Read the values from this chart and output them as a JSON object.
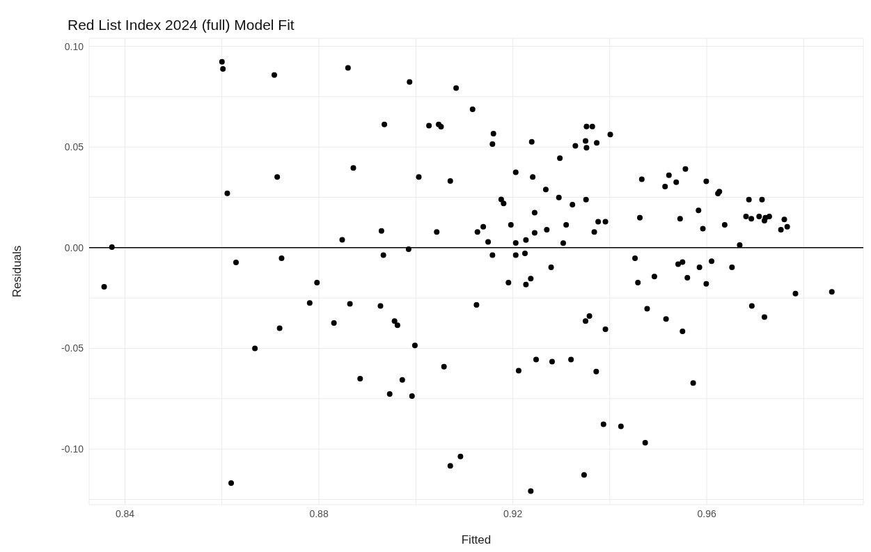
{
  "chart_data": {
    "type": "scatter",
    "title": "Red List Index 2024 (full) Model Fit",
    "xlabel": "Fitted",
    "ylabel": "Residuals",
    "grid": true,
    "marker": "circle",
    "xlim": [
      0.8326,
      0.9923
    ],
    "ylim": [
      -0.1276,
      0.104
    ],
    "xticks": [
      0.84,
      {
        "value": 0.86,
        "label": null
      },
      0.88,
      {
        "value": 0.9,
        "label": null
      },
      0.92,
      {
        "value": 0.94,
        "label": null
      },
      0.96,
      {
        "value": 0.98,
        "label": null
      }
    ],
    "yticks": [
      {
        "value": -0.125,
        "label": null
      },
      {
        "value": -0.1,
        "label": "-0.10"
      },
      {
        "value": -0.075,
        "label": null
      },
      {
        "value": -0.05,
        "label": "-0.05"
      },
      {
        "value": -0.025,
        "label": null
      },
      {
        "value": 0,
        "label": "0.00"
      },
      {
        "value": 0.025,
        "label": null
      },
      {
        "value": 0.05,
        "label": "0.05"
      },
      {
        "value": 0.075,
        "label": null
      },
      {
        "value": 0.1,
        "label": "0.10"
      }
    ],
    "ref_lines": [
      {
        "axis": "y",
        "value": 0,
        "color": "#000000"
      }
    ],
    "series": [
      {
        "color": "#000000",
        "x": [
          0.86,
          0.8602,
          0.8708,
          0.886,
          0.8871,
          0.8714,
          0.8611,
          0.8373,
          0.8848,
          0.8629,
          0.8723,
          0.8987,
          0.9083,
          0.9117,
          0.8935,
          0.9027,
          0.9047,
          0.9052,
          0.916,
          0.9158,
          0.9239,
          0.9352,
          0.9364,
          0.9401,
          0.935,
          0.9373,
          0.9329,
          0.9352,
          0.9297,
          0.9006,
          0.9071,
          0.9206,
          0.9241,
          0.9268,
          0.9295,
          0.9323,
          0.9351,
          0.9176,
          0.9181,
          0.9245,
          0.9196,
          0.9139,
          0.9127,
          0.9043,
          0.8929,
          0.931,
          0.927,
          0.9245,
          0.9376,
          0.9391,
          0.9368,
          0.9149,
          0.9206,
          0.9227,
          0.9304,
          0.8985,
          0.8933,
          0.9158,
          0.9206,
          0.9225,
          0.9279,
          0.9556,
          0.9522,
          0.9466,
          0.9537,
          0.9514,
          0.9599,
          0.9623,
          0.9626,
          0.9687,
          0.9714,
          0.9583,
          0.9462,
          0.9545,
          0.9681,
          0.9692,
          0.9708,
          0.9719,
          0.9721,
          0.9729,
          0.976,
          0.9766,
          0.9753,
          0.9637,
          0.9592,
          0.9668,
          0.9452,
          0.9541,
          0.955,
          0.9585,
          0.961,
          0.9652,
          0.8357,
          0.8796,
          0.8781,
          0.8864,
          0.8831,
          0.8719,
          0.8668,
          0.8619,
          0.9191,
          0.9227,
          0.9237,
          0.8927,
          0.8956,
          0.8962,
          0.8998,
          0.9125,
          0.935,
          0.9358,
          0.9391,
          0.9058,
          0.8885,
          0.8972,
          0.8946,
          0.8992,
          0.9212,
          0.9248,
          0.9281,
          0.932,
          0.9372,
          0.9387,
          0.9092,
          0.9071,
          0.9347,
          0.9237,
          0.9492,
          0.9458,
          0.956,
          0.9599,
          0.9783,
          0.9858,
          0.9477,
          0.9516,
          0.955,
          0.9693,
          0.9719,
          0.9572,
          0.9423,
          0.9473
        ],
        "values": [
          0.0923,
          0.0888,
          0.0858,
          0.0893,
          0.0396,
          0.0351,
          0.027,
          0.0003,
          0.0039,
          -0.0073,
          -0.0052,
          0.0823,
          0.0793,
          0.0687,
          0.0612,
          0.0606,
          0.0612,
          0.0601,
          0.0566,
          0.0515,
          0.0526,
          0.0602,
          0.0602,
          0.0562,
          0.053,
          0.0521,
          0.0506,
          0.0496,
          0.0445,
          0.0351,
          0.0331,
          0.0375,
          0.0351,
          0.0289,
          0.0249,
          0.0214,
          0.0239,
          0.024,
          0.022,
          0.0174,
          0.0114,
          0.0104,
          0.0078,
          0.0078,
          0.0083,
          0.0114,
          0.0089,
          0.0074,
          0.0129,
          0.0129,
          0.0078,
          0.0029,
          0.0024,
          0.0038,
          0.0023,
          -0.0007,
          -0.0037,
          -0.0037,
          -0.0037,
          -0.0028,
          -0.0097,
          0.0391,
          0.036,
          0.034,
          0.0325,
          0.0304,
          0.033,
          0.0269,
          0.0279,
          0.0239,
          0.0239,
          0.0185,
          0.0149,
          0.0144,
          0.0155,
          0.0144,
          0.0155,
          0.0134,
          0.0149,
          0.0155,
          0.014,
          0.0104,
          0.0089,
          0.0114,
          0.0095,
          0.0013,
          -0.0052,
          -0.0082,
          -0.0071,
          -0.0097,
          -0.0067,
          -0.0097,
          -0.0194,
          -0.0173,
          -0.0274,
          -0.0279,
          -0.0374,
          -0.04,
          -0.05,
          -0.1169,
          -0.0173,
          -0.0183,
          -0.0153,
          -0.0289,
          -0.0364,
          -0.0385,
          -0.0485,
          -0.0284,
          -0.0364,
          -0.0339,
          -0.0405,
          -0.0591,
          -0.065,
          -0.0656,
          -0.0726,
          -0.0737,
          -0.0611,
          -0.0555,
          -0.0566,
          -0.0555,
          -0.0615,
          -0.0877,
          -0.1037,
          -0.1083,
          -0.1128,
          -0.1209,
          -0.0143,
          -0.0173,
          -0.0149,
          -0.0179,
          -0.0228,
          -0.0219,
          -0.0303,
          -0.0354,
          -0.0415,
          -0.0289,
          -0.0344,
          -0.0672,
          -0.0887,
          -0.0968
        ]
      }
    ]
  }
}
